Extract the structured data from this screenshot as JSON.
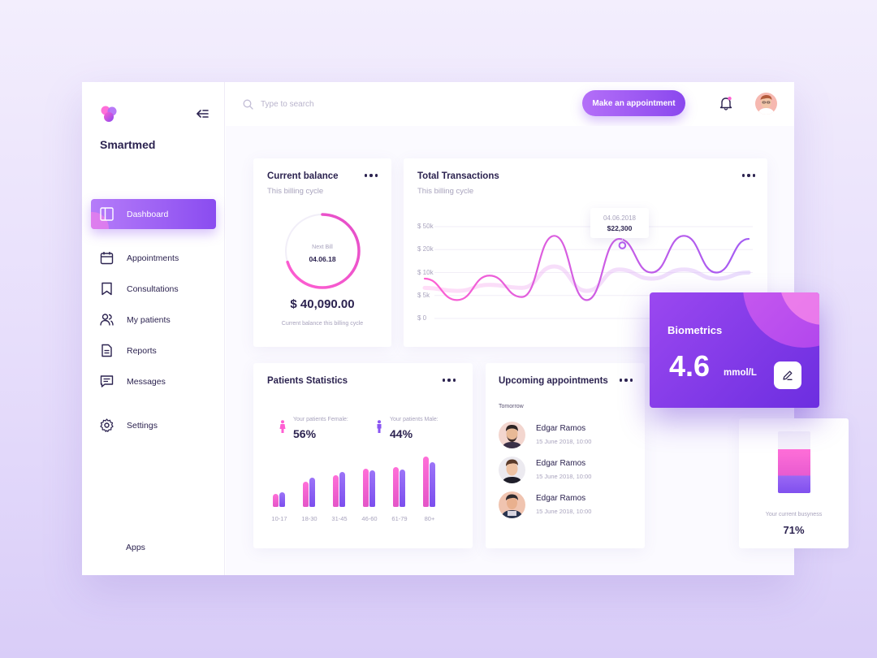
{
  "app": {
    "brand": "Smartmed"
  },
  "sidebar": {
    "items": [
      {
        "label": "Dashboard",
        "icon": "dashboard-icon",
        "active": true
      },
      {
        "label": "Appointments",
        "icon": "calendar-icon"
      },
      {
        "label": "Consultations",
        "icon": "bookmark-icon"
      },
      {
        "label": "My patients",
        "icon": "users-icon"
      },
      {
        "label": "Reports",
        "icon": "document-icon"
      },
      {
        "label": "Messages",
        "icon": "message-icon"
      },
      {
        "label": "Settings",
        "icon": "gear-icon"
      }
    ],
    "apps_label": "Apps"
  },
  "header": {
    "search_placeholder": "Type to search",
    "cta_label": "Make an appointment"
  },
  "balance": {
    "title": "Current balance",
    "subtitle": "This billing cycle",
    "ring_label": "Next Bill",
    "ring_date": "04.06.18",
    "ring_progress": 0.7,
    "amount": "$ 40,090.00",
    "caption": "Current balance this billing cycle"
  },
  "transactions": {
    "title": "Total Transactions",
    "subtitle": "This billing cycle",
    "tooltip_date": "04.06.2018",
    "tooltip_value": "$22,300"
  },
  "patients": {
    "title": "Patients Statistics",
    "female_label": "Your patients Female:",
    "female_value": "56%",
    "male_label": "Your patients Male:",
    "male_value": "44%"
  },
  "appointments": {
    "title": "Upcoming appointments",
    "group": "Tomorrow",
    "items": [
      {
        "name": "Edgar Ramos",
        "time": "15 June 2018, 10:00"
      },
      {
        "name": "Edgar Ramos",
        "time": "15 June 2018, 10:00"
      },
      {
        "name": "Edgar Ramos",
        "time": "15 June 2018, 10:00"
      }
    ]
  },
  "busyness": {
    "label": "Your current busyness",
    "value": "71%",
    "fraction": 0.71
  },
  "biometrics": {
    "title": "Biometrics",
    "value": "4.6",
    "unit": "mmol/L"
  },
  "chart_data": [
    {
      "type": "line",
      "title": "Total Transactions",
      "y_ticks": [
        "$ 50k",
        "$ 20k",
        "$ 10k",
        "$ 5k",
        "$ 0"
      ],
      "series": [
        {
          "values": [
            6.5,
            3.0,
            7.0,
            3.5,
            13.5,
            3.0,
            13.0,
            7.5,
            13.5,
            7.5,
            13.0
          ]
        },
        {
          "values": [
            5.0,
            4.5,
            5.5,
            5.0,
            8.5,
            4.5,
            8.0,
            6.5,
            8.0,
            6.5,
            7.5
          ]
        }
      ],
      "highlight": {
        "date": "04.06.2018",
        "value": "$22,300"
      }
    },
    {
      "type": "bar",
      "title": "Patients Statistics",
      "categories": [
        "10-17",
        "18-30",
        "31-45",
        "46-60",
        "61-79",
        "80+"
      ],
      "series": [
        {
          "values": [
            16,
            31,
            39,
            47,
            49,
            62
          ]
        },
        {
          "values": [
            18,
            36,
            43,
            45,
            46,
            55
          ]
        }
      ],
      "colors": [
        "#ff5fd2",
        "#8a55f2"
      ]
    }
  ],
  "colors": {
    "accent": "#8a48ee",
    "pink": "#ff5fd2",
    "text": "#2c2350"
  }
}
